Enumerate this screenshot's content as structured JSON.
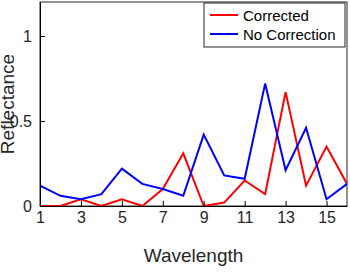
{
  "chart_data": {
    "type": "line",
    "x_label": "Wavelength",
    "y_label": "Reflectance",
    "x": [
      1,
      2,
      3,
      4,
      5,
      6,
      7,
      8,
      9,
      10,
      11,
      12,
      13,
      14,
      15,
      16
    ],
    "series": [
      {
        "name": "Corrected",
        "color": "#ff0000",
        "values": [
          0,
          0,
          0.04,
          0,
          0.04,
          0,
          0.1,
          0.31,
          0,
          0.02,
          0.15,
          0.07,
          0.67,
          0.12,
          0.35,
          0.13
        ]
      },
      {
        "name": "No Correction",
        "color": "#0000ff",
        "values": [
          0.12,
          0.06,
          0.04,
          0.07,
          0.22,
          0.13,
          0.1,
          0.06,
          0.42,
          0.18,
          0.16,
          0.72,
          0.21,
          0.46,
          0.04,
          0.13
        ]
      }
    ],
    "xlim": [
      1,
      16
    ],
    "ylim": [
      0,
      1.2
    ],
    "xticks": [
      1,
      3,
      5,
      7,
      9,
      11,
      13,
      15
    ],
    "yticks": [
      0,
      0.5,
      1
    ],
    "legend": "top-right",
    "grid": false
  }
}
